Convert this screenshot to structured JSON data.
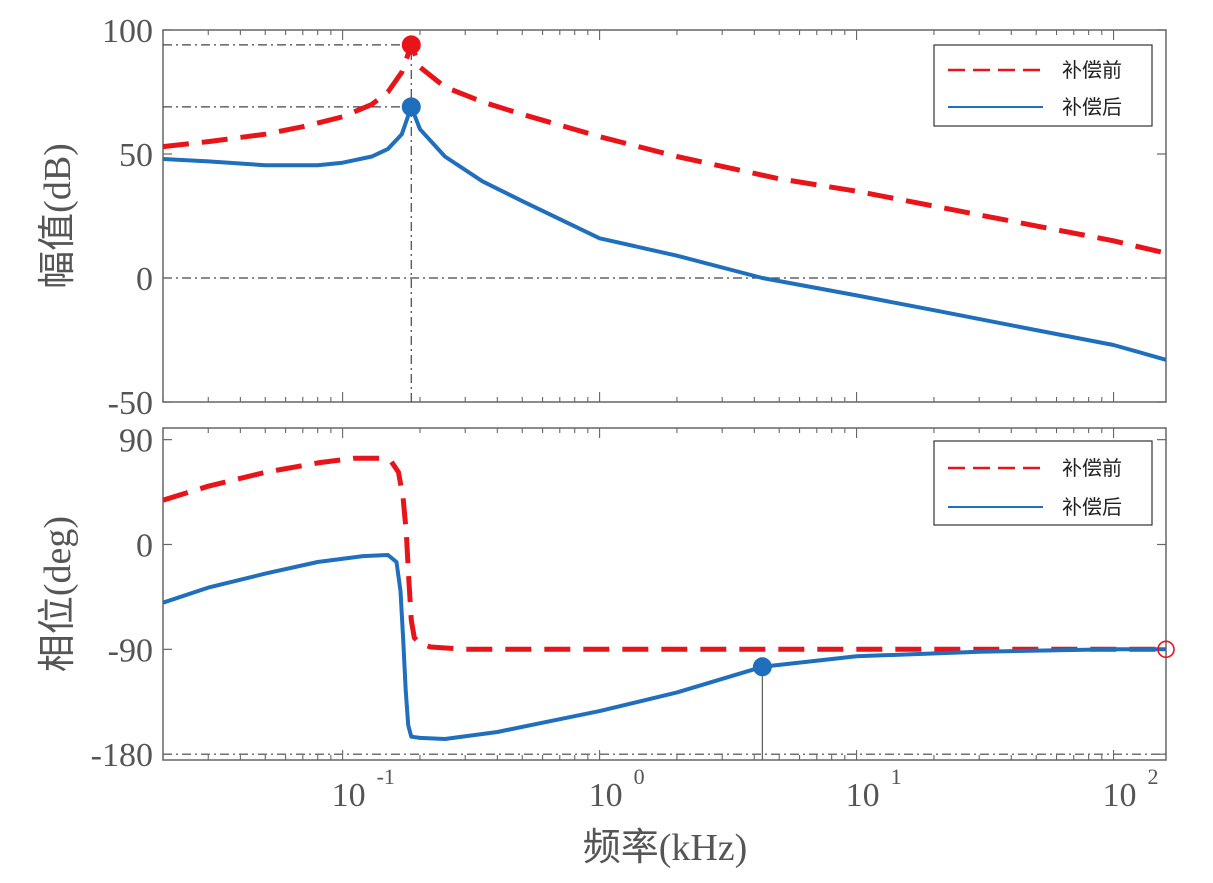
{
  "x_axis": {
    "label": "频率(kHz)",
    "scale": "log",
    "xlim": [
      0.02,
      160
    ],
    "ticks": [
      {
        "value": 0.1,
        "base": "10",
        "exp": "-1"
      },
      {
        "value": 1,
        "base": "10",
        "exp": "0"
      },
      {
        "value": 10,
        "base": "10",
        "exp": "1"
      },
      {
        "value": 100,
        "base": "10",
        "exp": "2"
      }
    ]
  },
  "colors": {
    "before": "#e8141a",
    "after": "#1f6fbd",
    "axis": "#666666",
    "refline": "#444444"
  },
  "chart_data": [
    {
      "type": "line",
      "title": "",
      "ylabel": "幅值(dB)",
      "ylim": [
        -50,
        100
      ],
      "yticks": [
        {
          "value": 100,
          "label": "100"
        },
        {
          "value": 50,
          "label": "50"
        },
        {
          "value": 0,
          "label": "0"
        },
        {
          "value": -50,
          "label": "-50"
        }
      ],
      "legend": {
        "position": "top-right",
        "entries": [
          "补偿前",
          "补偿后"
        ]
      },
      "series": [
        {
          "name": "补偿前",
          "style": "dashed",
          "x": [
            0.02,
            0.03,
            0.05,
            0.07,
            0.1,
            0.13,
            0.15,
            0.17,
            0.185,
            0.2,
            0.25,
            0.35,
            0.5,
            1,
            2,
            5,
            10,
            20,
            50,
            100,
            160
          ],
          "y": [
            53,
            55,
            58,
            61,
            65,
            70,
            75,
            83,
            94,
            85,
            77,
            71,
            66,
            57,
            49,
            40,
            35,
            29,
            21,
            15,
            10
          ]
        },
        {
          "name": "补偿后",
          "style": "solid",
          "x": [
            0.02,
            0.03,
            0.05,
            0.08,
            0.1,
            0.13,
            0.15,
            0.17,
            0.185,
            0.2,
            0.25,
            0.35,
            0.5,
            1,
            2,
            4.3,
            10,
            20,
            50,
            100,
            160
          ],
          "y": [
            48,
            47,
            45.5,
            45.5,
            46.5,
            49,
            52,
            58,
            69,
            60,
            49,
            39,
            31,
            16,
            9,
            0,
            -7,
            -13,
            -21,
            -27,
            -33
          ]
        }
      ],
      "markers": [
        {
          "series": "补偿前",
          "x": 0.185,
          "y": 94,
          "style": "filled"
        },
        {
          "series": "补偿后",
          "x": 0.185,
          "y": 69,
          "style": "filled"
        }
      ],
      "reference_lines": [
        {
          "orientation": "horizontal",
          "y": 94,
          "x_from": 0.02,
          "x_to": 0.185
        },
        {
          "orientation": "horizontal",
          "y": 69,
          "x_from": 0.02,
          "x_to": 0.185
        },
        {
          "orientation": "horizontal",
          "y": 0,
          "x_from": 0.02,
          "x_to": 160
        },
        {
          "orientation": "vertical",
          "x": 0.185,
          "y_from": -50,
          "y_to": 94
        }
      ]
    },
    {
      "type": "line",
      "title": "",
      "ylabel": "相位(deg)",
      "ylim": [
        -185,
        100
      ],
      "yticks": [
        {
          "value": 90,
          "label": "90"
        },
        {
          "value": 0,
          "label": "0"
        },
        {
          "value": -90,
          "label": "-90"
        },
        {
          "value": -180,
          "label": "-180"
        }
      ],
      "legend": {
        "position": "top-right",
        "entries": [
          "补偿前",
          "补偿后"
        ]
      },
      "series": [
        {
          "name": "补偿前",
          "style": "dashed",
          "x": [
            0.02,
            0.03,
            0.05,
            0.08,
            0.11,
            0.14,
            0.155,
            0.165,
            0.172,
            0.177,
            0.181,
            0.185,
            0.19,
            0.2,
            0.22,
            0.3,
            0.5,
            1,
            10,
            100,
            160
          ],
          "y": [
            38,
            50,
            62,
            70,
            74,
            74,
            71,
            62,
            40,
            10,
            -30,
            -65,
            -80,
            -85,
            -88,
            -90,
            -90,
            -90,
            -90,
            -90,
            -90
          ]
        },
        {
          "name": "补偿后",
          "style": "solid",
          "x": [
            0.02,
            0.03,
            0.05,
            0.08,
            0.12,
            0.15,
            0.162,
            0.168,
            0.172,
            0.176,
            0.18,
            0.185,
            0.2,
            0.25,
            0.4,
            0.7,
            1,
            2,
            4.3,
            10,
            30,
            100,
            160
          ],
          "y": [
            -50,
            -37,
            -25,
            -15,
            -10,
            -9,
            -15,
            -40,
            -80,
            -125,
            -155,
            -165,
            -166,
            -167,
            -161,
            -150,
            -143,
            -127,
            -105,
            -96,
            -92,
            -90,
            -90
          ]
        }
      ],
      "markers": [
        {
          "series": "补偿后",
          "x": 4.3,
          "y": -105,
          "style": "filled"
        },
        {
          "series": "补偿前",
          "x": 160,
          "y": -90,
          "style": "open-circle"
        }
      ],
      "reference_lines": [
        {
          "orientation": "horizontal",
          "y": -180,
          "x_from": 0.02,
          "x_to": 160
        },
        {
          "orientation": "vertical-solid",
          "x": 4.3,
          "y_from": -185,
          "y_to": -105
        }
      ]
    }
  ]
}
